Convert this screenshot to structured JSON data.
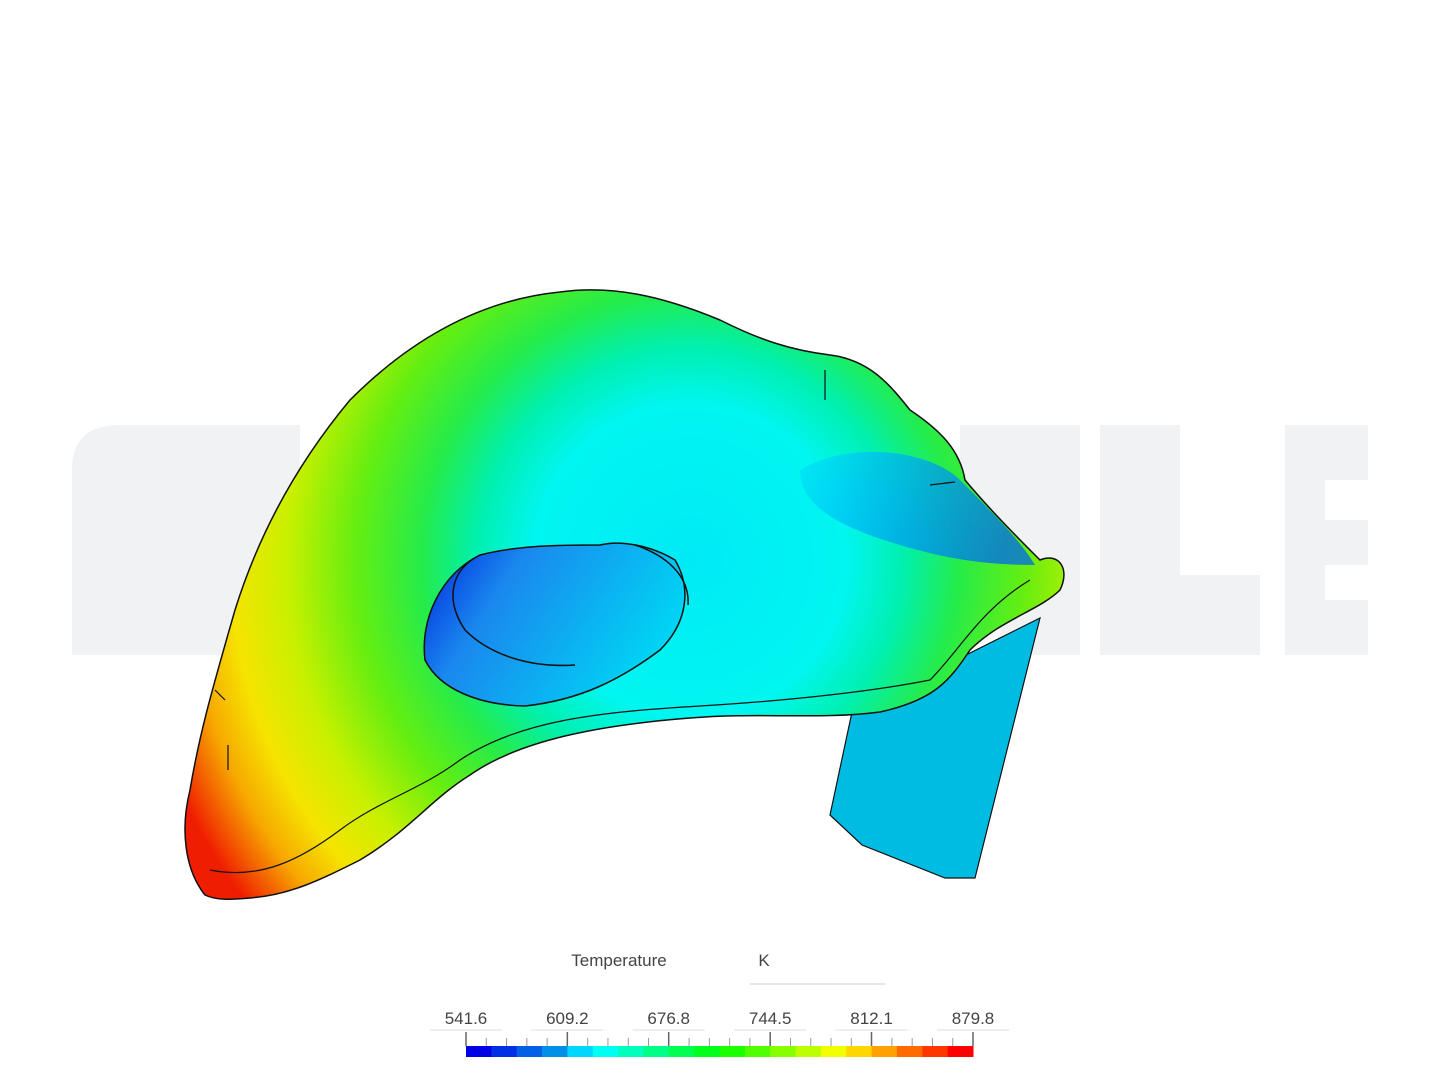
{
  "legend": {
    "title": "Temperature",
    "unit": "K",
    "ticks": [
      541.6,
      609.2,
      676.8,
      744.5,
      812.1,
      879.8
    ]
  }
}
